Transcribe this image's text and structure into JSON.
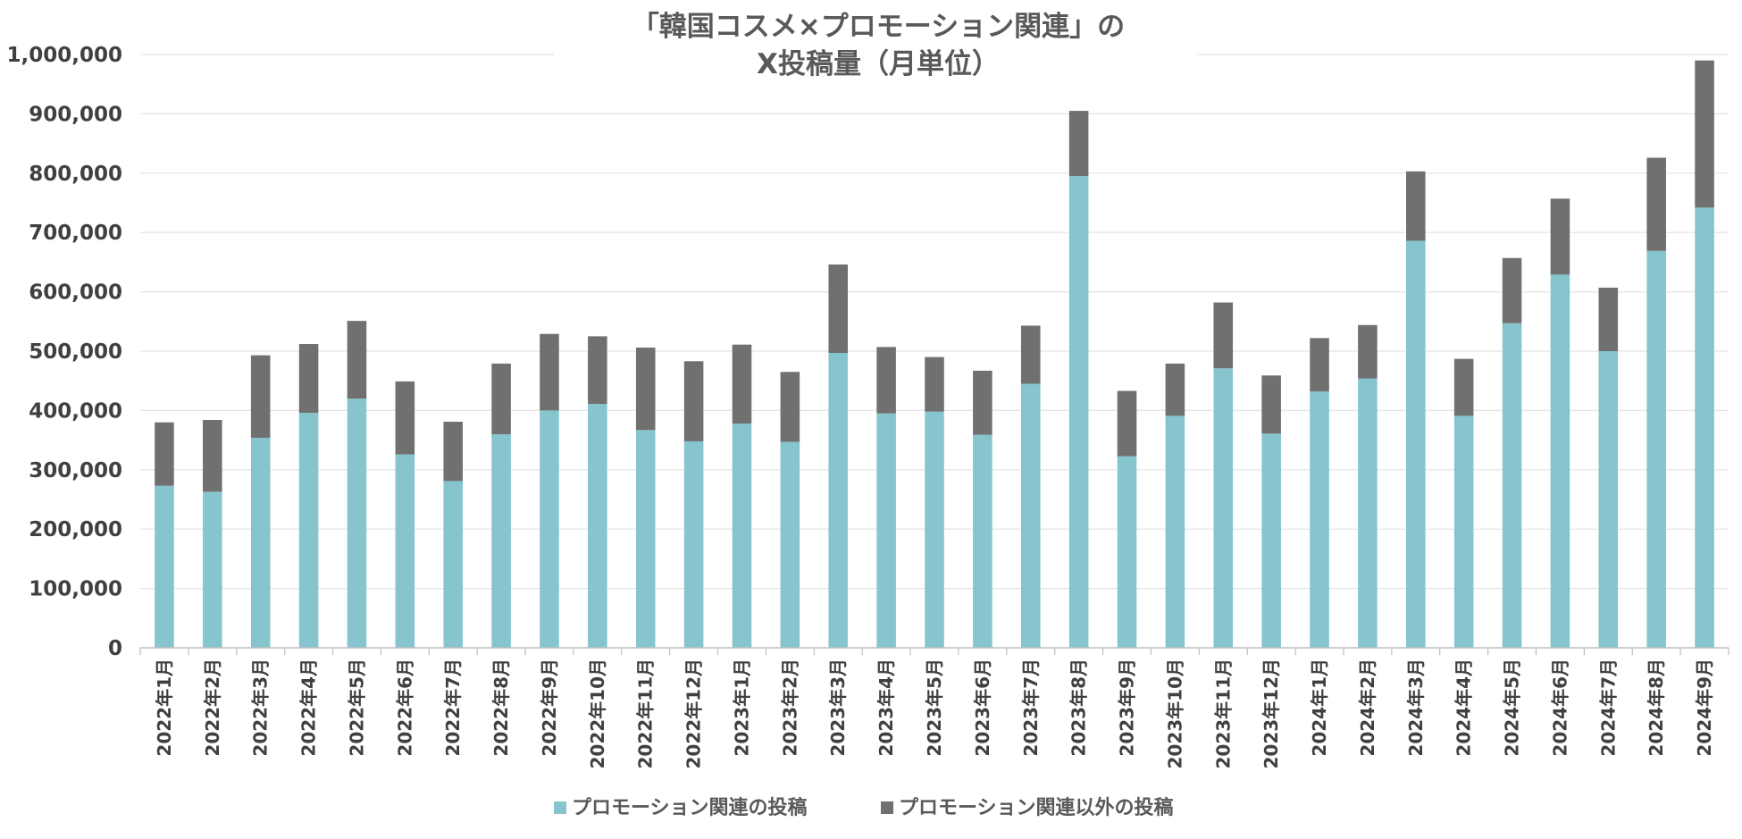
{
  "chart_data": {
    "type": "bar",
    "stacked": true,
    "title_lines": [
      "「韓国コスメ×プロモーション関連」の",
      "X投稿量（月単位）"
    ],
    "xlabel": "",
    "ylabel": "",
    "ylim": [
      0,
      1000000
    ],
    "yticks": [
      0,
      100000,
      200000,
      300000,
      400000,
      500000,
      600000,
      700000,
      800000,
      900000,
      1000000
    ],
    "ytick_labels": [
      "0",
      "100,000",
      "200,000",
      "300,000",
      "400,000",
      "500,000",
      "600,000",
      "700,000",
      "800,000",
      "900,000",
      "1,000,000"
    ],
    "grid": true,
    "legend_position": "bottom",
    "categories": [
      "2022年1月",
      "2022年2月",
      "2022年3月",
      "2022年4月",
      "2022年5月",
      "2022年6月",
      "2022年7月",
      "2022年8月",
      "2022年9月",
      "2022年10月",
      "2022年11月",
      "2022年12月",
      "2023年1月",
      "2023年2月",
      "2023年3月",
      "2023年4月",
      "2023年5月",
      "2023年6月",
      "2023年7月",
      "2023年8月",
      "2023年9月",
      "2023年10月",
      "2023年11月",
      "2023年12月",
      "2024年1月",
      "2024年2月",
      "2024年3月",
      "2024年4月",
      "2024年5月",
      "2024年6月",
      "2024年7月",
      "2024年8月",
      "2024年9月"
    ],
    "series": [
      {
        "name": "プロモーション関連の投稿",
        "color": "#86C5CE",
        "values": [
          273000,
          263000,
          354000,
          396000,
          420000,
          326000,
          281000,
          360000,
          400000,
          411000,
          367000,
          348000,
          378000,
          347000,
          497000,
          395000,
          398000,
          359000,
          445000,
          795000,
          323000,
          391000,
          471000,
          361000,
          432000,
          454000,
          686000,
          391000,
          547000,
          629000,
          500000,
          669000,
          742000
        ]
      },
      {
        "name": "プロモーション関連以外の投稿",
        "color": "#707070",
        "values": [
          107000,
          121000,
          139000,
          116000,
          131000,
          123000,
          100000,
          119000,
          129000,
          114000,
          139000,
          135000,
          133000,
          118000,
          149000,
          112000,
          92000,
          108000,
          98000,
          110000,
          110000,
          88000,
          111000,
          98000,
          90000,
          90000,
          117000,
          96000,
          110000,
          128000,
          107000,
          157000,
          248000
        ]
      }
    ]
  }
}
